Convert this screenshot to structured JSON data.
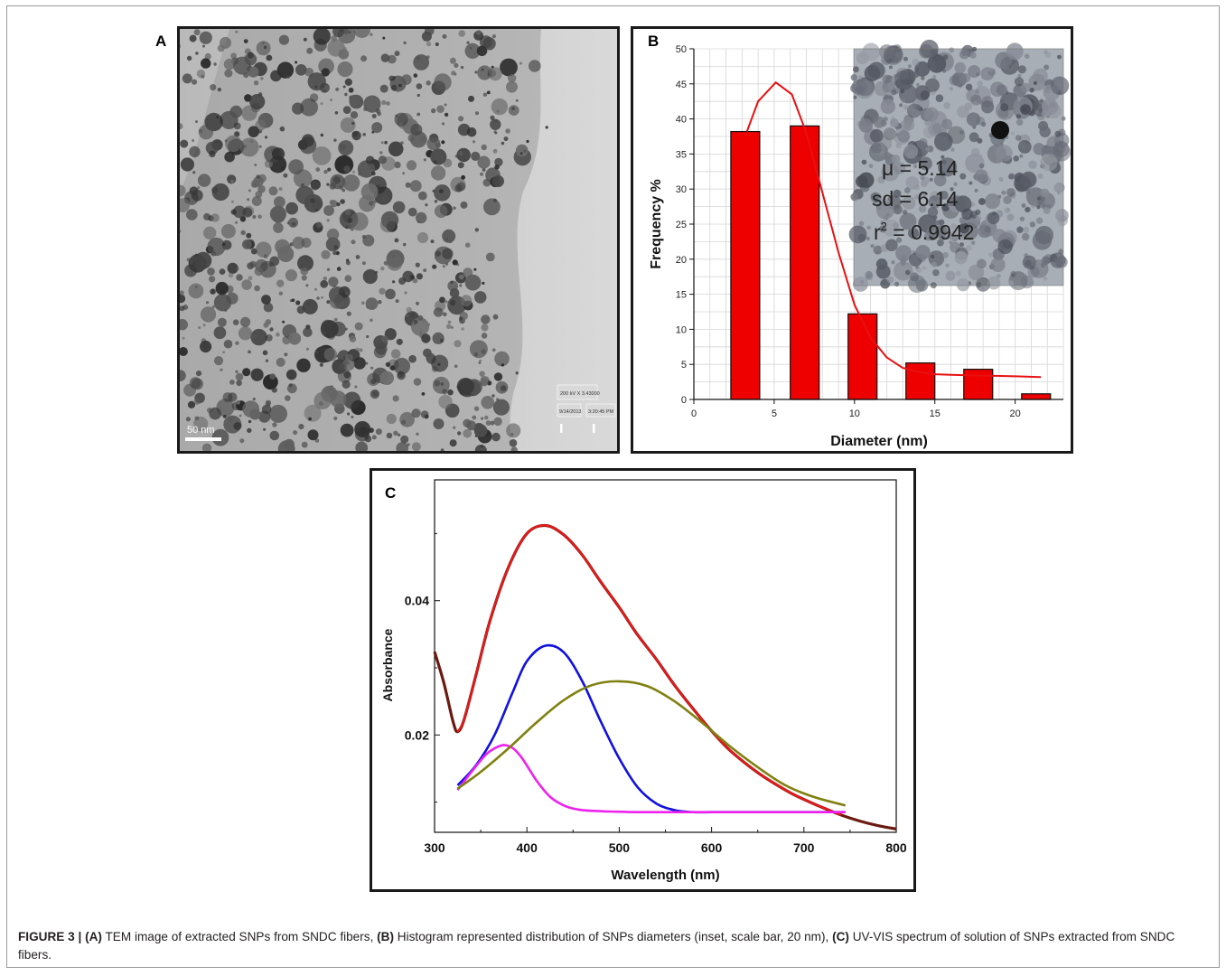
{
  "figure": {
    "caption": {
      "lead": "FIGURE 3 | ",
      "a_tag": "(A)",
      "a_text": " TEM image of extracted SNPs from SNDC fibers, ",
      "b_tag": "(B)",
      "b_text": " Histogram represented distribution of SNPs diameters (inset, scale bar, 20 nm), ",
      "c_tag": "(C)",
      "c_text": " UV-VIS spectrum of solution of SNPs extracted from SNDC fibers."
    }
  },
  "panel_a": {
    "label": "A",
    "scale_bar": "50 nm",
    "info_line1": "200 kV  X 3.43000",
    "info_line2": "9/14/2013",
    "info_line3": "3:20:45 PM"
  },
  "panel_b": {
    "label": "B",
    "inset_mu": "μ = 5.14",
    "inset_sd": "sd = 6.14",
    "inset_r2_prefix": "r",
    "inset_r2_sup": "2",
    "inset_r2_value": " = 0.9942"
  },
  "panel_c": {
    "label": "C"
  },
  "colors": {
    "bar_fill": "#ee0000",
    "fit_line": "#e81010",
    "spectrum_dark": "#6b1a10",
    "spectrum_red": "#e41a1a",
    "gauss_blue": "#1010e0",
    "gauss_magenta": "#ee22ee",
    "gauss_olive": "#808010"
  },
  "chart_data": [
    {
      "type": "bar",
      "xlabel": "Diameter (nm)",
      "ylabel": "Frequency %",
      "xlim": [
        0,
        23
      ],
      "ylim": [
        0,
        50
      ],
      "xticks": [
        0,
        5,
        10,
        15,
        20
      ],
      "yticks": [
        0,
        5,
        10,
        15,
        20,
        25,
        30,
        35,
        40,
        45,
        50
      ],
      "grid": true,
      "bins": [
        {
          "x0": 2.3,
          "x1": 4.1,
          "value": 38.2
        },
        {
          "x0": 6.0,
          "x1": 7.8,
          "value": 39.0
        },
        {
          "x0": 9.6,
          "x1": 11.4,
          "value": 12.2
        },
        {
          "x0": 13.2,
          "x1": 15.0,
          "value": 5.2
        },
        {
          "x0": 16.8,
          "x1": 18.6,
          "value": 4.3
        },
        {
          "x0": 20.4,
          "x1": 22.2,
          "value": 0.8
        }
      ],
      "fit_curve": [
        [
          3.3,
          38.2
        ],
        [
          4.0,
          42.5
        ],
        [
          5.1,
          45.2
        ],
        [
          6.1,
          43.5
        ],
        [
          7.0,
          38.0
        ],
        [
          8.0,
          29.5
        ],
        [
          9.0,
          21.0
        ],
        [
          10.0,
          13.5
        ],
        [
          11.0,
          8.8
        ],
        [
          12.0,
          6.0
        ],
        [
          13.0,
          4.5
        ],
        [
          14.0,
          3.9
        ],
        [
          15.0,
          3.6
        ],
        [
          16.0,
          3.5
        ],
        [
          18.0,
          3.4
        ],
        [
          20.0,
          3.3
        ],
        [
          21.6,
          3.2
        ]
      ]
    },
    {
      "type": "line",
      "xlabel": "Wavelength (nm)",
      "ylabel": "Absorbance",
      "xlim": [
        300,
        800
      ],
      "ylim": [
        0.0055,
        0.058
      ],
      "xticks": [
        300,
        400,
        500,
        600,
        700,
        800
      ],
      "yticks": [
        0.02,
        0.04
      ],
      "ytick_labels": [
        "0.02",
        "0.04"
      ],
      "series": [
        {
          "x": [
            300,
            310,
            320,
            325,
            332,
            345,
            360,
            380,
            400,
            420,
            440,
            460,
            480,
            500,
            520,
            540,
            560,
            580,
            600,
            620,
            650,
            680,
            700,
            720,
            740,
            760,
            780,
            800
          ],
          "y": [
            0.0324,
            0.0278,
            0.022,
            0.0205,
            0.0223,
            0.029,
            0.037,
            0.045,
            0.05,
            0.0512,
            0.0498,
            0.0468,
            0.0428,
            0.039,
            0.0349,
            0.0313,
            0.0274,
            0.0239,
            0.0206,
            0.0177,
            0.0144,
            0.0118,
            0.0104,
            0.0092,
            0.0081,
            0.0072,
            0.0065,
            0.006
          ]
        },
        {
          "x": [
            325,
            345,
            365,
            385,
            400,
            420,
            440,
            460,
            480,
            500,
            520,
            540,
            560,
            580,
            600,
            620,
            640,
            660,
            700,
            745
          ],
          "y": [
            0.0125,
            0.0155,
            0.02,
            0.0265,
            0.031,
            0.0333,
            0.0323,
            0.028,
            0.022,
            0.0165,
            0.0122,
            0.0098,
            0.0088,
            0.0085,
            0.0085,
            0.0085,
            0.0085,
            0.0085,
            0.0085,
            0.0085
          ]
        },
        {
          "x": [
            325,
            340,
            355,
            365,
            375,
            385,
            395,
            410,
            425,
            440,
            455,
            470,
            490,
            520,
            560,
            600,
            650,
            700,
            745
          ],
          "y": [
            0.0118,
            0.0145,
            0.017,
            0.018,
            0.0185,
            0.018,
            0.0165,
            0.0133,
            0.0108,
            0.0095,
            0.0089,
            0.0087,
            0.0086,
            0.0085,
            0.0085,
            0.0085,
            0.0085,
            0.0085,
            0.0085
          ]
        },
        {
          "x": [
            325,
            350,
            380,
            410,
            440,
            470,
            500,
            530,
            560,
            590,
            620,
            650,
            680,
            710,
            745
          ],
          "y": [
            0.012,
            0.0145,
            0.018,
            0.0218,
            0.0252,
            0.0274,
            0.028,
            0.0273,
            0.025,
            0.0218,
            0.0183,
            0.0152,
            0.0125,
            0.0108,
            0.0095
          ]
        }
      ]
    }
  ]
}
